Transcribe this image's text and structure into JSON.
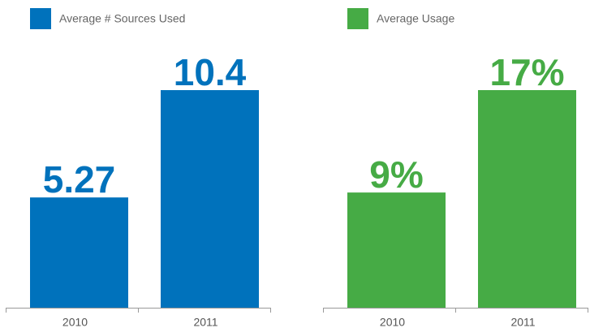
{
  "chart_data": [
    {
      "type": "bar",
      "categories": [
        "2010",
        "2011"
      ],
      "series": [
        {
          "name": "Average # Sources Used",
          "color": "#0072bc",
          "values": [
            5.27,
            10.4
          ]
        }
      ]
    },
    {
      "type": "bar",
      "categories": [
        "2010",
        "2011"
      ],
      "series": [
        {
          "name": "Average Usage",
          "color": "#46ab45",
          "values": [
            9,
            17
          ],
          "value_labels": [
            "9%",
            "17%"
          ]
        }
      ]
    }
  ]
}
